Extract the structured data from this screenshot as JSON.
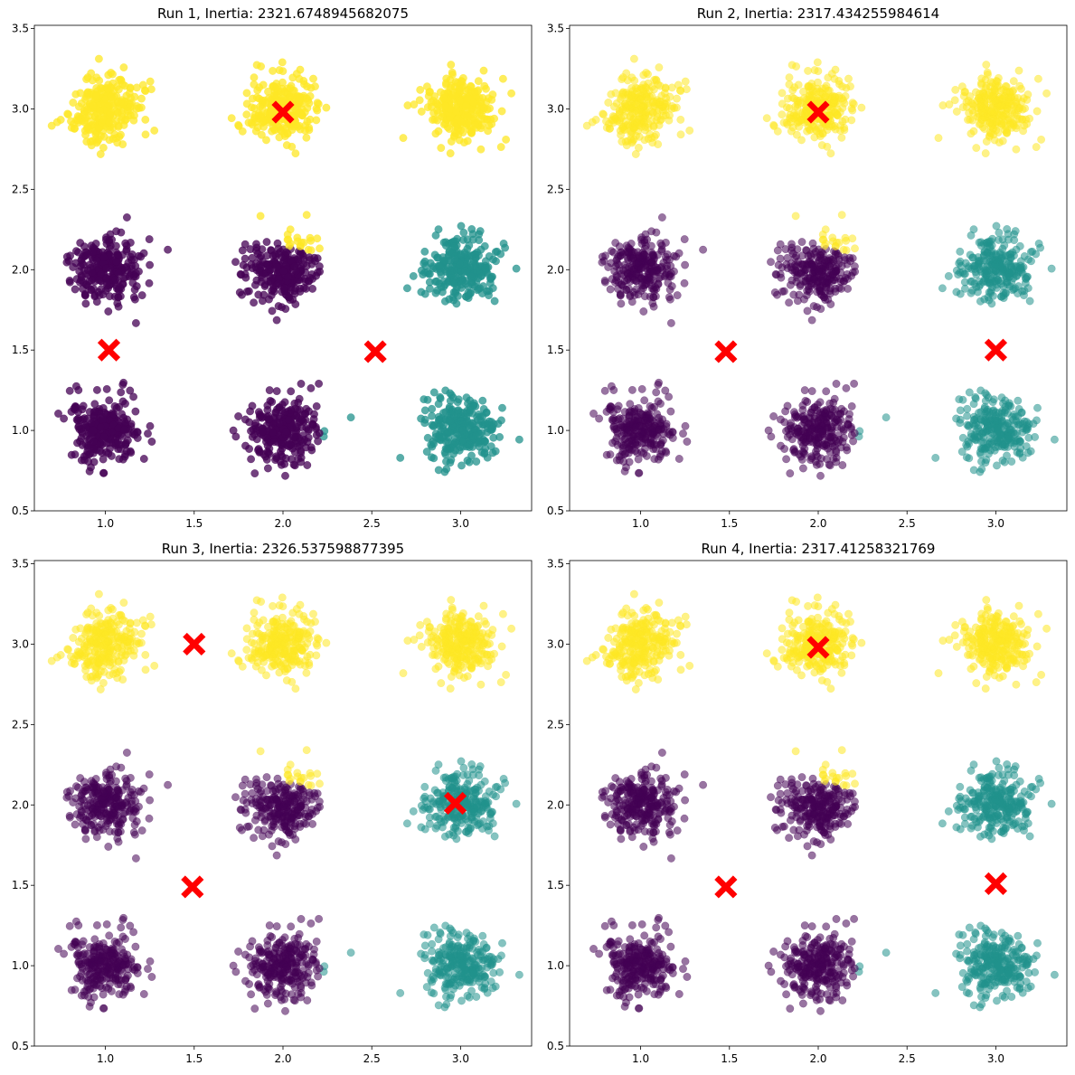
{
  "colors": {
    "purple": "#440154",
    "teal": "#21918c",
    "yellow": "#fde725",
    "centroid": "#ff0000"
  },
  "chart_data": [
    {
      "type": "scatter",
      "title": "Run 1, Inertia: 2321.6748945682075",
      "xlim": [
        0.6,
        3.4
      ],
      "ylim": [
        0.5,
        3.52
      ],
      "xticks": [
        "1.0",
        "1.5",
        "2.0",
        "2.5",
        "3.0"
      ],
      "yticks": [
        "0.5",
        "1.0",
        "1.5",
        "2.0",
        "2.5",
        "3.0",
        "3.5"
      ],
      "point_alpha": 0.75,
      "blobs": [
        {
          "x": 1.0,
          "y": 3.0,
          "cluster": "yellow"
        },
        {
          "x": 2.0,
          "y": 3.0,
          "cluster": "yellow"
        },
        {
          "x": 3.0,
          "y": 3.0,
          "cluster": "yellow"
        },
        {
          "x": 1.0,
          "y": 2.0,
          "cluster": "purple"
        },
        {
          "x": 2.0,
          "y": 2.0,
          "cluster": "purple"
        },
        {
          "x": 3.0,
          "y": 2.0,
          "cluster": "teal"
        },
        {
          "x": 1.0,
          "y": 1.0,
          "cluster": "purple"
        },
        {
          "x": 2.0,
          "y": 1.0,
          "cluster": "purple"
        },
        {
          "x": 3.0,
          "y": 1.0,
          "cluster": "teal"
        }
      ],
      "centroids": [
        {
          "x": 2.0,
          "y": 2.98
        },
        {
          "x": 1.02,
          "y": 1.5
        },
        {
          "x": 2.52,
          "y": 1.49
        }
      ]
    },
    {
      "type": "scatter",
      "title": "Run 2, Inertia: 2317.434255984614",
      "xlim": [
        0.6,
        3.4
      ],
      "ylim": [
        0.5,
        3.52
      ],
      "xticks": [
        "1.0",
        "1.5",
        "2.0",
        "2.5",
        "3.0"
      ],
      "yticks": [
        "0.5",
        "1.0",
        "1.5",
        "2.0",
        "2.5",
        "3.0",
        "3.5"
      ],
      "point_alpha": 0.55,
      "blobs": [
        {
          "x": 1.0,
          "y": 3.0,
          "cluster": "yellow"
        },
        {
          "x": 2.0,
          "y": 3.0,
          "cluster": "yellow"
        },
        {
          "x": 3.0,
          "y": 3.0,
          "cluster": "yellow"
        },
        {
          "x": 1.0,
          "y": 2.0,
          "cluster": "purple"
        },
        {
          "x": 2.0,
          "y": 2.0,
          "cluster": "purple"
        },
        {
          "x": 3.0,
          "y": 2.0,
          "cluster": "teal"
        },
        {
          "x": 1.0,
          "y": 1.0,
          "cluster": "purple"
        },
        {
          "x": 2.0,
          "y": 1.0,
          "cluster": "purple"
        },
        {
          "x": 3.0,
          "y": 1.0,
          "cluster": "teal"
        }
      ],
      "centroids": [
        {
          "x": 2.0,
          "y": 2.98
        },
        {
          "x": 1.48,
          "y": 1.49
        },
        {
          "x": 3.0,
          "y": 1.5
        }
      ]
    },
    {
      "type": "scatter",
      "title": "Run 3, Inertia: 2326.537598877395",
      "xlim": [
        0.6,
        3.4
      ],
      "ylim": [
        0.5,
        3.52
      ],
      "xticks": [
        "1.0",
        "1.5",
        "2.0",
        "2.5",
        "3.0"
      ],
      "yticks": [
        "0.5",
        "1.0",
        "1.5",
        "2.0",
        "2.5",
        "3.0",
        "3.5"
      ],
      "point_alpha": 0.55,
      "blobs": [
        {
          "x": 1.0,
          "y": 3.0,
          "cluster": "yellow"
        },
        {
          "x": 2.0,
          "y": 3.0,
          "cluster": "yellow"
        },
        {
          "x": 3.0,
          "y": 3.0,
          "cluster": "yellow"
        },
        {
          "x": 1.0,
          "y": 2.0,
          "cluster": "purple"
        },
        {
          "x": 2.0,
          "y": 2.0,
          "cluster": "purple"
        },
        {
          "x": 3.0,
          "y": 2.0,
          "cluster": "teal"
        },
        {
          "x": 1.0,
          "y": 1.0,
          "cluster": "purple"
        },
        {
          "x": 2.0,
          "y": 1.0,
          "cluster": "purple"
        },
        {
          "x": 3.0,
          "y": 1.0,
          "cluster": "teal"
        }
      ],
      "centroids": [
        {
          "x": 1.5,
          "y": 3.0
        },
        {
          "x": 2.97,
          "y": 2.01
        },
        {
          "x": 1.49,
          "y": 1.49
        }
      ]
    },
    {
      "type": "scatter",
      "title": "Run 4, Inertia: 2317.41258321769",
      "xlim": [
        0.6,
        3.4
      ],
      "ylim": [
        0.5,
        3.52
      ],
      "xticks": [
        "1.0",
        "1.5",
        "2.0",
        "2.5",
        "3.0"
      ],
      "yticks": [
        "0.5",
        "1.0",
        "1.5",
        "2.0",
        "2.5",
        "3.0",
        "3.5"
      ],
      "point_alpha": 0.55,
      "blobs": [
        {
          "x": 1.0,
          "y": 3.0,
          "cluster": "yellow"
        },
        {
          "x": 2.0,
          "y": 3.0,
          "cluster": "yellow"
        },
        {
          "x": 3.0,
          "y": 3.0,
          "cluster": "yellow"
        },
        {
          "x": 1.0,
          "y": 2.0,
          "cluster": "purple"
        },
        {
          "x": 2.0,
          "y": 2.0,
          "cluster": "purple"
        },
        {
          "x": 3.0,
          "y": 2.0,
          "cluster": "teal"
        },
        {
          "x": 1.0,
          "y": 1.0,
          "cluster": "purple"
        },
        {
          "x": 2.0,
          "y": 1.0,
          "cluster": "purple"
        },
        {
          "x": 3.0,
          "y": 1.0,
          "cluster": "teal"
        }
      ],
      "centroids": [
        {
          "x": 2.0,
          "y": 2.98
        },
        {
          "x": 1.48,
          "y": 1.49
        },
        {
          "x": 3.0,
          "y": 1.51
        }
      ]
    }
  ]
}
